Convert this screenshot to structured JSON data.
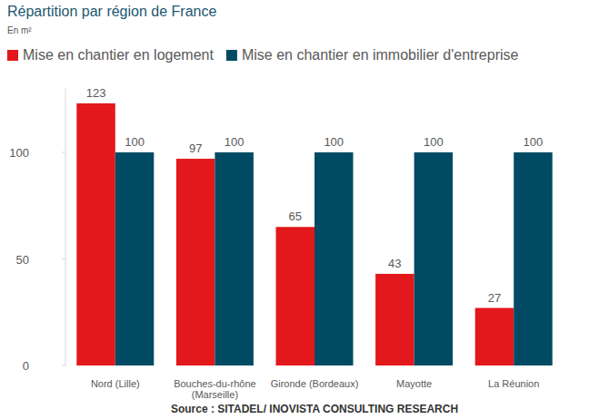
{
  "chart_data": {
    "type": "bar",
    "title": "Répartition par région de France",
    "subtitle": "En m²",
    "source": "Source : SITADEL/ INOVISTA CONSULTING RESEARCH",
    "categories": [
      "Nord (Lille)",
      "Bouches-du-rhône (Marseille)",
      "Gironde (Bordeaux)",
      "Mayotte",
      "La Réunion"
    ],
    "series": [
      {
        "name": "Mise en chantier en logement",
        "color": "#e3181c",
        "values": [
          123,
          97,
          65,
          43,
          27
        ]
      },
      {
        "name": "Mise en chantier en immobilier d'entreprise",
        "color": "#004b63",
        "values": [
          100,
          100,
          100,
          100,
          100
        ]
      }
    ],
    "ylim": [
      0,
      130
    ],
    "yticks": [
      0,
      50,
      100
    ],
    "grid": false,
    "legend": "top-left",
    "data_labels": true
  }
}
